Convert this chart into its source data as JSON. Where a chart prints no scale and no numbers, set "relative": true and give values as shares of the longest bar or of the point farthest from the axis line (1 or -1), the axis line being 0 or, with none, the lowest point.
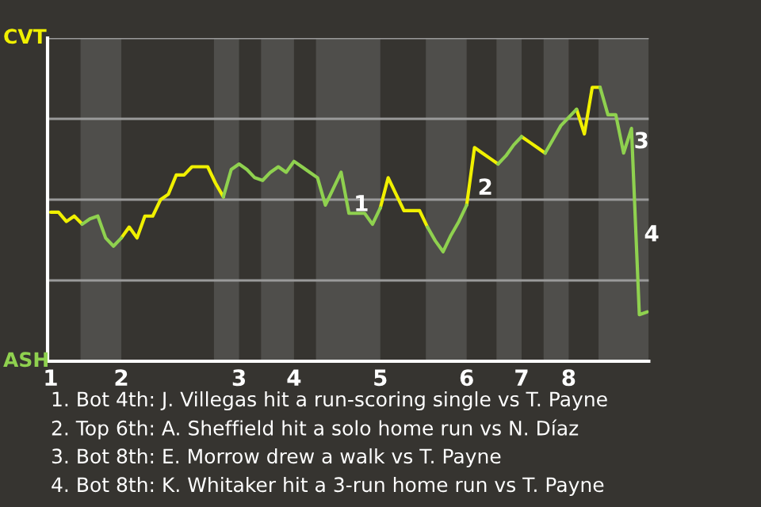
{
  "chart_data": {
    "type": "line",
    "relative": true,
    "categories": [
      "1",
      null,
      null,
      null,
      null,
      null,
      null,
      null,
      null,
      "2",
      null,
      null,
      null,
      null,
      null,
      null,
      null,
      null,
      null,
      null,
      null,
      null,
      null,
      null,
      "3",
      null,
      null,
      null,
      null,
      null,
      null,
      "4",
      null,
      null,
      null,
      null,
      null,
      null,
      null,
      null,
      null,
      null,
      "5",
      null,
      null,
      null,
      null,
      null,
      null,
      null,
      null,
      null,
      null,
      "6",
      null,
      null,
      null,
      null,
      null,
      null,
      "7",
      null,
      null,
      null,
      null,
      null,
      "8",
      null,
      null,
      null,
      null,
      null,
      null,
      null,
      null,
      null,
      null
    ],
    "grid": "y",
    "series": [
      {
        "color": "#f0f000",
        "values": [
          0.544,
          0.544,
          0.51,
          0.53,
          0.501,
          null,
          null,
          null,
          null,
          0.45,
          0.49,
          0.45,
          0.53,
          0.53,
          0.59,
          0.61,
          0.68,
          0.68,
          0.71,
          0.71,
          0.71,
          0.65,
          0.6,
          null,
          null,
          null,
          null,
          null,
          null,
          null,
          null,
          null,
          null,
          null,
          null,
          null,
          null,
          null,
          null,
          null,
          null,
          null,
          0.56,
          0.67,
          0.61,
          0.55,
          0.55,
          0.55,
          0.49,
          null,
          null,
          null,
          null,
          0.57,
          0.78,
          0.76,
          0.74,
          0.72,
          null,
          null,
          0.82,
          0.8,
          0.78,
          0.76,
          null,
          null,
          null,
          0.92,
          0.83,
          1,
          1,
          null,
          null,
          null,
          null,
          null,
          null
        ]
      },
      {
        "color": "#8fd14f",
        "values": [
          null,
          null,
          null,
          null,
          0.5,
          0.52,
          0.53,
          0.45,
          0.42,
          0.45,
          null,
          null,
          null,
          null,
          null,
          null,
          null,
          null,
          null,
          null,
          null,
          null,
          0.6,
          0.7,
          0.72,
          0.7,
          0.67,
          0.66,
          0.69,
          0.71,
          0.69,
          0.73,
          0.71,
          0.69,
          0.67,
          0.57,
          0.63,
          0.69,
          0.54,
          0.54,
          0.54,
          0.5,
          0.56,
          null,
          null,
          null,
          null,
          null,
          0.49,
          0.44,
          0.4,
          0.46,
          0.51,
          0.57,
          null,
          null,
          null,
          0.72,
          0.75,
          0.79,
          0.82,
          null,
          null,
          0.76,
          0.81,
          0.86,
          0.89,
          0.92,
          null,
          null,
          1,
          0.9,
          0.9,
          0.76,
          0.85,
          0.17,
          0.18
        ]
      }
    ],
    "annotations": [
      "1",
      "2",
      "3",
      "4",
      "CVT",
      "ASH",
      "1. Bot 4th: J. Villegas hit a run-scoring single vs T. Payne",
      "2. Top 6th: A. Sheffield hit a solo home run vs N. Díaz",
      "3. Bot 8th: E. Morrow drew a walk vs T. Payne",
      "4. Bot 8th: K. Whitaker hit a 3-run home run vs T. Payne"
    ]
  }
}
